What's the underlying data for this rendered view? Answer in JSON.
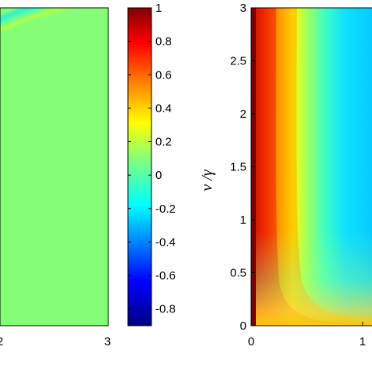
{
  "chart_data": [
    {
      "type": "heatmap",
      "title": "",
      "xlabel": "",
      "ylabel": "",
      "xlim": [
        0,
        3
      ],
      "x_tick_labels": [
        "2",
        "3"
      ],
      "x_ticks": [
        2,
        3
      ],
      "colormap": "jet",
      "description_values": "concentric oscillating fringes of values close to 0, alternating roughly between -0.05 and 0.15"
    },
    {
      "type": "colorbar",
      "colormap": "jet",
      "range": [
        -0.9,
        1
      ],
      "tick_labels": [
        "1",
        "0.8",
        "0.6",
        "0.4",
        "0.2",
        "0",
        "-0.2",
        "-0.4",
        "-0.6",
        "-0.8"
      ],
      "ticks": [
        1,
        0.8,
        0.6,
        0.4,
        0.2,
        0,
        -0.2,
        -0.4,
        -0.6,
        -0.8
      ]
    },
    {
      "type": "heatmap",
      "title": "",
      "xlabel": "",
      "ylabel": "ν /γ",
      "xlim": [
        0,
        1.1
      ],
      "ylim": [
        0,
        3
      ],
      "x_tick_labels": [
        "0",
        "1"
      ],
      "x_ticks": [
        0,
        1
      ],
      "y_tick_labels": [
        "3",
        "2.5",
        "2",
        "1.5",
        "1",
        "0.5",
        "0"
      ],
      "y_ticks": [
        3,
        2.5,
        2,
        1.5,
        1,
        0.5,
        0
      ],
      "colormap": "jet"
    }
  ]
}
